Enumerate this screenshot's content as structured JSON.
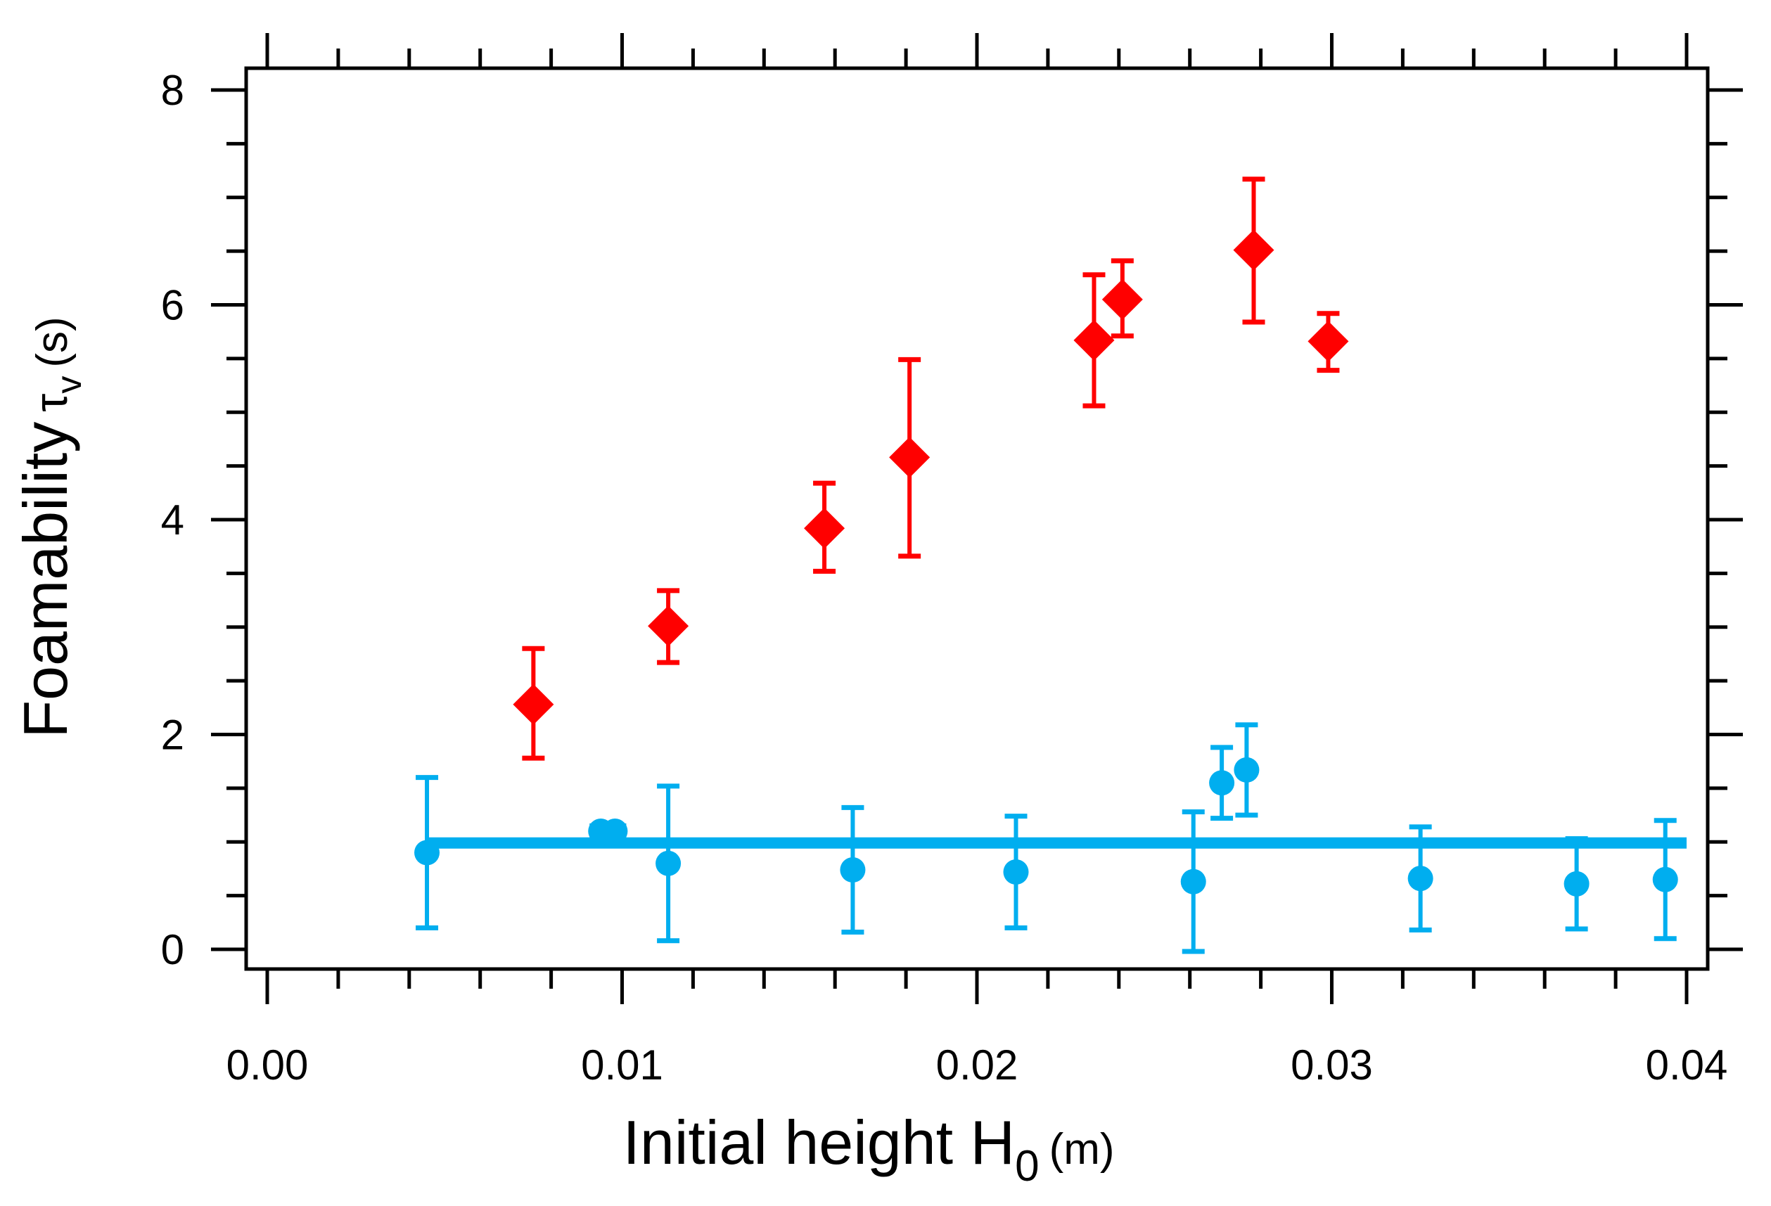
{
  "chart_data": {
    "type": "scatter",
    "title": "",
    "xlabel": {
      "main": "Initial height H",
      "sub": "0",
      "unit": "(m)"
    },
    "ylabel": {
      "main": "Foamability",
      "symbol": "τ",
      "sub": "v",
      "unit": "(s)"
    },
    "xlim": [
      0.0,
      0.04
    ],
    "ylim": [
      0,
      8
    ],
    "x_ticks": [
      0.0,
      0.01,
      0.02,
      0.03,
      0.04
    ],
    "x_tick_labels": [
      "0.00",
      "0.01",
      "0.02",
      "0.03",
      "0.04"
    ],
    "y_ticks": [
      0,
      2,
      4,
      6,
      8
    ],
    "y_tick_labels": [
      "0",
      "2",
      "4",
      "6",
      "8"
    ],
    "x_minor_step": 0.002,
    "y_minor_step": 0.5,
    "grid": false,
    "series": [
      {
        "name": "red diamonds",
        "marker": "diamond",
        "color": "#ff0000",
        "points": [
          {
            "x": 0.0075,
            "y": 2.28,
            "err_low": 0.5,
            "err_high": 0.52
          },
          {
            "x": 0.0113,
            "y": 3.01,
            "err_low": 0.34,
            "err_high": 0.33
          },
          {
            "x": 0.0157,
            "y": 3.92,
            "err_low": 0.4,
            "err_high": 0.42
          },
          {
            "x": 0.0181,
            "y": 4.58,
            "err_low": 0.92,
            "err_high": 0.91
          },
          {
            "x": 0.0233,
            "y": 5.67,
            "err_low": 0.61,
            "err_high": 0.61
          },
          {
            "x": 0.0241,
            "y": 6.05,
            "err_low": 0.34,
            "err_high": 0.36
          },
          {
            "x": 0.0278,
            "y": 6.51,
            "err_low": 0.67,
            "err_high": 0.66
          },
          {
            "x": 0.0299,
            "y": 5.66,
            "err_low": 0.27,
            "err_high": 0.26
          }
        ]
      },
      {
        "name": "blue circles",
        "marker": "circle",
        "color": "#00aeef",
        "points": [
          {
            "x": 0.0045,
            "y": 0.9,
            "err_low": 0.7,
            "err_high": 0.7
          },
          {
            "x": 0.0094,
            "y": 1.1,
            "err_low": 0.05,
            "err_high": 0.05
          },
          {
            "x": 0.0098,
            "y": 1.1,
            "err_low": 0.05,
            "err_high": 0.05
          },
          {
            "x": 0.0113,
            "y": 0.8,
            "err_low": 0.72,
            "err_high": 0.72
          },
          {
            "x": 0.0165,
            "y": 0.74,
            "err_low": 0.58,
            "err_high": 0.58
          },
          {
            "x": 0.0211,
            "y": 0.72,
            "err_low": 0.52,
            "err_high": 0.52
          },
          {
            "x": 0.0261,
            "y": 0.63,
            "err_low": 0.65,
            "err_high": 0.65
          },
          {
            "x": 0.0269,
            "y": 1.55,
            "err_low": 0.33,
            "err_high": 0.33
          },
          {
            "x": 0.0276,
            "y": 1.67,
            "err_low": 0.42,
            "err_high": 0.42
          },
          {
            "x": 0.0325,
            "y": 0.66,
            "err_low": 0.48,
            "err_high": 0.48
          },
          {
            "x": 0.0369,
            "y": 0.61,
            "err_low": 0.42,
            "err_high": 0.42
          },
          {
            "x": 0.0394,
            "y": 0.65,
            "err_low": 0.55,
            "err_high": 0.55
          }
        ]
      }
    ],
    "lines": [
      {
        "name": "blue mean line",
        "color": "#00aeef",
        "x": [
          0.0045,
          0.04
        ],
        "y": [
          0.99,
          0.99
        ]
      }
    ]
  }
}
